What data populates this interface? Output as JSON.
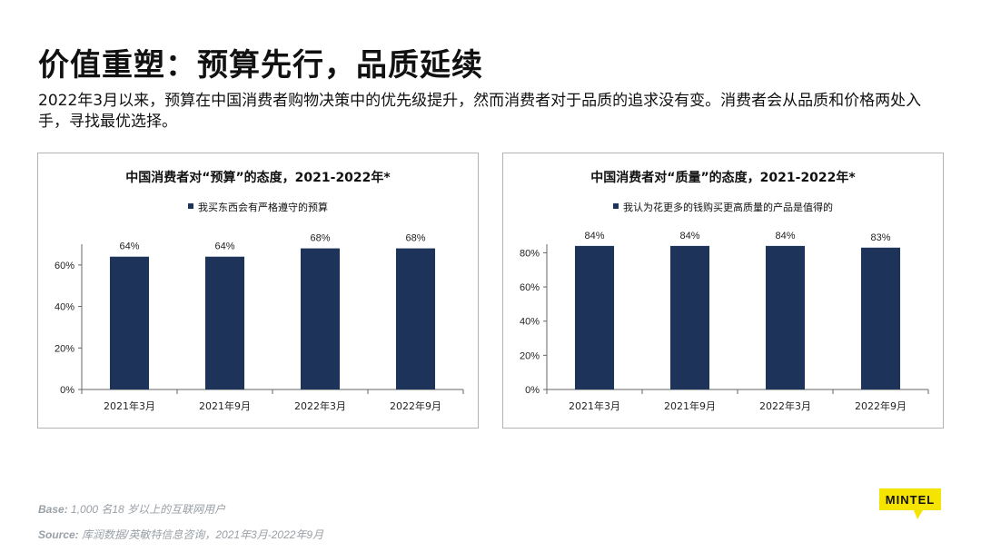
{
  "header": {
    "title": "价值重塑：预算先行，品质延续",
    "subtitle": "2022年3月以来，预算在中国消费者购物决策中的优先级提升，然而消费者对于品质的追求没有变。消费者会从品质和价格两处入手，寻找最优选择。"
  },
  "colors": {
    "bar": "#1d335a",
    "axis": "#666666",
    "panel_border": "#b4b4b4",
    "logo_yellow": "#f5e400"
  },
  "chart_data": [
    {
      "type": "bar",
      "title": "中国消费者对“预算”的态度，2021-2022年*",
      "categories": [
        "2021年3月",
        "2021年9月",
        "2022年3月",
        "2022年9月"
      ],
      "series": [
        {
          "name": "我买东西会有严格遵守的预算",
          "values": [
            64,
            64,
            68,
            68
          ]
        }
      ],
      "data_labels": [
        "64%",
        "64%",
        "68%",
        "68%"
      ],
      "yticks": [
        0,
        20,
        40,
        60
      ],
      "ytick_labels": [
        "0%",
        "20%",
        "40%",
        "60%"
      ],
      "ylim": [
        0,
        70
      ],
      "legend_position": "top",
      "grid": false
    },
    {
      "type": "bar",
      "title": "中国消费者对“质量”的态度，2021-2022年*",
      "categories": [
        "2021年3月",
        "2021年9月",
        "2022年3月",
        "2022年9月"
      ],
      "series": [
        {
          "name": "我认为花更多的钱购买更高质量的产品是值得的",
          "values": [
            84,
            84,
            84,
            83
          ]
        }
      ],
      "data_labels": [
        "84%",
        "84%",
        "84%",
        "83%"
      ],
      "yticks": [
        0,
        20,
        40,
        60,
        80
      ],
      "ytick_labels": [
        "0%",
        "20%",
        "40%",
        "60%",
        "80%"
      ],
      "ylim": [
        0,
        85
      ],
      "legend_position": "top",
      "grid": false
    }
  ],
  "footer": {
    "base_label": "Base:",
    "base_text": " 1,000 名18 岁以上的互联网用户",
    "source_label": "Source:",
    "source_text": " 库润数据/英敏特信息咨询，2021年3月-2022年9月"
  },
  "logo": {
    "text": "MINTEL"
  }
}
